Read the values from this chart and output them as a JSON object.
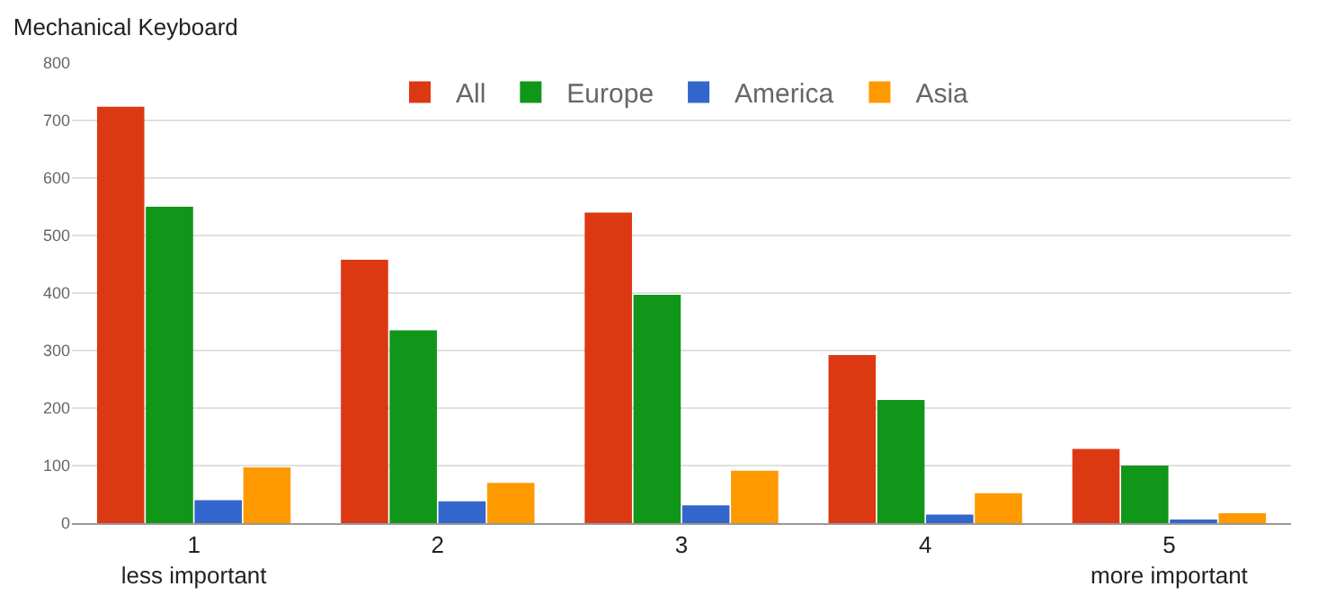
{
  "chart_data": {
    "type": "bar",
    "title": "Mechanical Keyboard",
    "categories": [
      "1\nless important",
      "2",
      "3",
      "4",
      "5\nmore important"
    ],
    "series": [
      {
        "name": "All",
        "color": "#dc3912",
        "values": [
          724,
          458,
          540,
          292,
          129
        ]
      },
      {
        "name": "Europe",
        "color": "#109618",
        "values": [
          550,
          335,
          397,
          214,
          100
        ]
      },
      {
        "name": "America",
        "color": "#3366cc",
        "values": [
          40,
          38,
          31,
          15,
          5
        ]
      },
      {
        "name": "Asia",
        "color": "#ff9900",
        "values": [
          97,
          70,
          91,
          52,
          17
        ]
      }
    ],
    "ylim": [
      0,
      800
    ],
    "yticks": [
      0,
      100,
      200,
      300,
      400,
      500,
      600,
      700,
      800
    ],
    "grid": "y",
    "legend": "top"
  }
}
